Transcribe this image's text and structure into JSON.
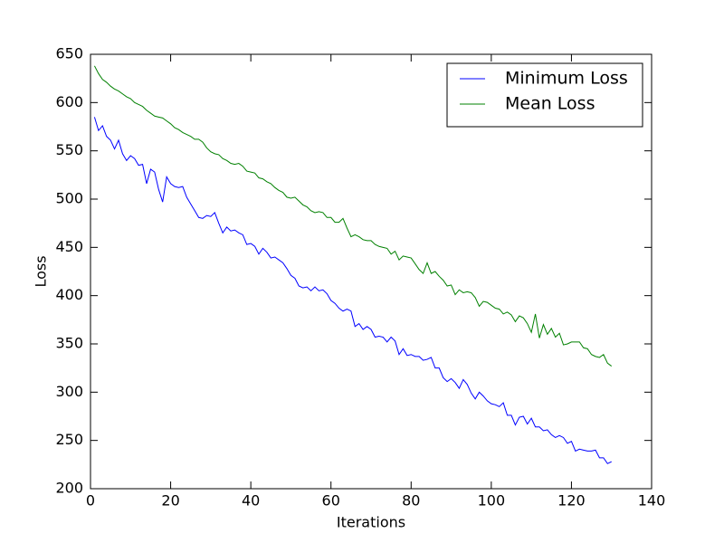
{
  "chart_data": {
    "type": "line",
    "x_label": "Iterations",
    "y_label": "Loss",
    "x": [
      1,
      2,
      3,
      4,
      5,
      6,
      7,
      8,
      9,
      10,
      11,
      12,
      13,
      14,
      15,
      16,
      17,
      18,
      19,
      20,
      21,
      22,
      23,
      24,
      25,
      26,
      27,
      28,
      29,
      30,
      31,
      32,
      33,
      34,
      35,
      36,
      37,
      38,
      39,
      40,
      41,
      42,
      43,
      44,
      45,
      46,
      47,
      48,
      49,
      50,
      51,
      52,
      53,
      54,
      55,
      56,
      57,
      58,
      59,
      60,
      61,
      62,
      63,
      64,
      65,
      66,
      67,
      68,
      69,
      70,
      71,
      72,
      73,
      74,
      75,
      76,
      77,
      78,
      79,
      80,
      81,
      82,
      83,
      84,
      85,
      86,
      87,
      88,
      89,
      90,
      91,
      92,
      93,
      94,
      95,
      96,
      97,
      98,
      99,
      100,
      101,
      102,
      103,
      104,
      105,
      106,
      107,
      108,
      109,
      110,
      111,
      112,
      113,
      114,
      115,
      116,
      117,
      118,
      119,
      120,
      121,
      122,
      123,
      124,
      125,
      126,
      127,
      128,
      129,
      130
    ],
    "series": [
      {
        "name": "Minimum Loss",
        "color": "#0000ff",
        "values": [
          585,
          571,
          576,
          565,
          561,
          552,
          561,
          547,
          540,
          545,
          542,
          535,
          536,
          516,
          531,
          528,
          510,
          497,
          523,
          516,
          513,
          512,
          513,
          502,
          495,
          488,
          481,
          480,
          483,
          482,
          486,
          475,
          465,
          471,
          467,
          468,
          465,
          463,
          453,
          454,
          451,
          443,
          449,
          445,
          439,
          440,
          437,
          434,
          428,
          421,
          418,
          410,
          408,
          409,
          405,
          409,
          405,
          406,
          402,
          395,
          392,
          387,
          384,
          386,
          384,
          368,
          371,
          365,
          368,
          365,
          357,
          358,
          357,
          352,
          357,
          353,
          339,
          345,
          338,
          339,
          337,
          337,
          333,
          334,
          336,
          325,
          325,
          315,
          311,
          314,
          310,
          304,
          313,
          308,
          299,
          293,
          300,
          296,
          291,
          288,
          287,
          285,
          289,
          276,
          276,
          266,
          274,
          275,
          267,
          273,
          264,
          264,
          260,
          261,
          256,
          253,
          255,
          253,
          247,
          249,
          239,
          241,
          240,
          239,
          239,
          240,
          232,
          232,
          226,
          228
        ]
      },
      {
        "name": "Mean Loss",
        "color": "#008000",
        "values": [
          638,
          630,
          624,
          621,
          617,
          614,
          612,
          609,
          606,
          604,
          600,
          598,
          596,
          592,
          589,
          586,
          585,
          584,
          581,
          578,
          574,
          572,
          569,
          567,
          565,
          562,
          562,
          559,
          553,
          549,
          547,
          546,
          542,
          540,
          537,
          536,
          537,
          534,
          529,
          528,
          527,
          522,
          521,
          518,
          516,
          512,
          509,
          507,
          502,
          501,
          502,
          498,
          494,
          492,
          488,
          486,
          487,
          486,
          481,
          481,
          476,
          476,
          480,
          470,
          461,
          463,
          461,
          458,
          457,
          457,
          453,
          451,
          450,
          449,
          443,
          446,
          437,
          441,
          440,
          439,
          433,
          427,
          423,
          434,
          423,
          425,
          420,
          416,
          410,
          411,
          401,
          406,
          403,
          404,
          403,
          398,
          389,
          394,
          393,
          390,
          387,
          386,
          381,
          383,
          380,
          373,
          379,
          377,
          371,
          362,
          381,
          356,
          370,
          360,
          366,
          357,
          361,
          349,
          350,
          352,
          352,
          352,
          346,
          345,
          339,
          337,
          336,
          339,
          330,
          327
        ]
      }
    ],
    "xlim": [
      0,
      140
    ],
    "xticks": [
      0,
      20,
      40,
      60,
      80,
      100,
      120,
      140
    ],
    "ylim": [
      200,
      650
    ],
    "yticks": [
      200,
      250,
      300,
      350,
      400,
      450,
      500,
      550,
      600,
      650
    ],
    "legend": "upper right",
    "grid": false
  }
}
